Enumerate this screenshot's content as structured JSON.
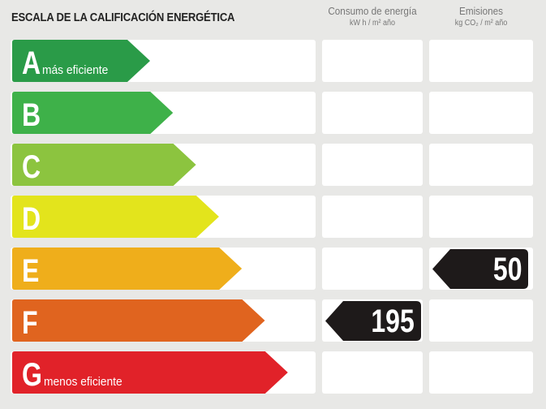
{
  "title": "ESCALA DE LA CALIFICACIÓN ENERGÉTICA",
  "columns": {
    "consumo": {
      "label": "Consumo de energía",
      "unit": "kW h / m² año"
    },
    "emisiones": {
      "label": "Emisiones",
      "unit": "kg CO₂ / m² año"
    }
  },
  "ratings": [
    {
      "letter": "A",
      "sub": "más eficiente",
      "color": "#2a9b48"
    },
    {
      "letter": "B",
      "sub": "",
      "color": "#3eb149"
    },
    {
      "letter": "C",
      "sub": "",
      "color": "#8cc43f"
    },
    {
      "letter": "D",
      "sub": "",
      "color": "#e3e41c"
    },
    {
      "letter": "E",
      "sub": "",
      "color": "#efae1b"
    },
    {
      "letter": "F",
      "sub": "",
      "color": "#e0641f"
    },
    {
      "letter": "G",
      "sub": "menos eficiente",
      "color": "#e12229"
    }
  ],
  "consumo_value": {
    "rating": "F",
    "value": "195"
  },
  "emisiones_value": {
    "rating": "E",
    "value": "50"
  },
  "marker_color": "#1e1a1a"
}
